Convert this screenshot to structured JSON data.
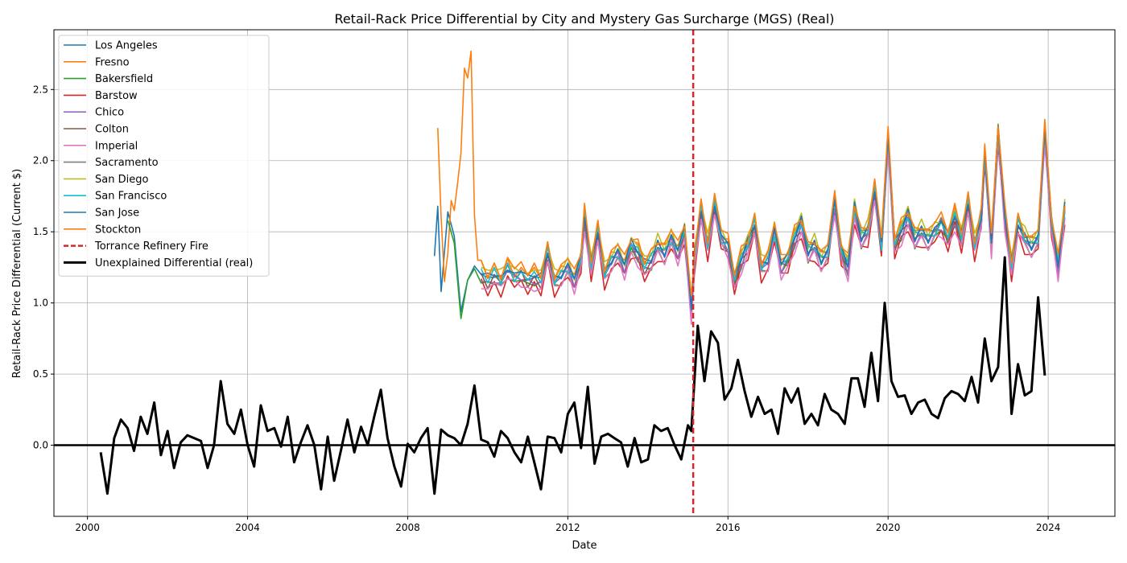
{
  "chart_data": {
    "type": "line",
    "title": "Retail-Rack Price Differential by City and Mystery Gas Surcharge (MGS) (Real)",
    "xlabel": "Date",
    "ylabel": "Retail-Rack Price Differential (Current $)",
    "xlim": [
      "1999-03-01",
      "2025-09-01"
    ],
    "ylim": [
      -0.5,
      2.92
    ],
    "x_ticks": [
      "2000",
      "2004",
      "2008",
      "2012",
      "2016",
      "2020",
      "2024"
    ],
    "y_ticks": [
      "0.0",
      "0.5",
      "1.0",
      "1.5",
      "2.0",
      "2.5"
    ],
    "grid": true,
    "legend_position": "top-left",
    "zero_line": 0,
    "event": {
      "name": "Torrance Refinery Fire",
      "date": "2015-02-18",
      "color": "#d62728"
    },
    "city_series": [
      {
        "name": "Los Angeles",
        "color": "#1f77b4",
        "start": "2008-09-01",
        "offset": 0.0
      },
      {
        "name": "Fresno",
        "color": "#ff7f0e",
        "start": "2008-10-01",
        "offset": 0.04
      },
      {
        "name": "Bakersfield",
        "color": "#2ca02c",
        "start": "2009-01-01",
        "offset": -0.04
      },
      {
        "name": "Barstow",
        "color": "#d62728",
        "start": "2009-10-01",
        "offset": -0.07
      },
      {
        "name": "Chico",
        "color": "#9467bd",
        "start": "2009-10-01",
        "offset": -0.02
      },
      {
        "name": "Colton",
        "color": "#8c564b",
        "start": "2009-10-01",
        "offset": -0.01
      },
      {
        "name": "Imperial",
        "color": "#e377c2",
        "start": "2009-10-01",
        "offset": -0.06
      },
      {
        "name": "Sacramento",
        "color": "#7f7f7f",
        "start": "2017-09-01",
        "offset": 0.03
      },
      {
        "name": "San Diego",
        "color": "#bcbd22",
        "start": "2009-10-01",
        "offset": 0.05
      },
      {
        "name": "San Francisco",
        "color": "#17becf",
        "start": "2009-10-01",
        "offset": 0.01
      },
      {
        "name": "San Jose",
        "color": "#1f77b4",
        "start": "2009-10-01",
        "offset": 0.02
      },
      {
        "name": "Stockton",
        "color": "#ff7f0e",
        "start": "2009-11-01",
        "offset": 0.06
      }
    ],
    "city_base": {
      "x": [
        "2008-09-01",
        "2008-10-01",
        "2008-11-01",
        "2009-01-01",
        "2009-03-01",
        "2009-05-01",
        "2009-07-01",
        "2009-09-01",
        "2009-11-01",
        "2010-01-01",
        "2010-03-01",
        "2010-05-01",
        "2010-07-01",
        "2010-09-01",
        "2010-11-01",
        "2011-01-01",
        "2011-03-01",
        "2011-05-01",
        "2011-07-01",
        "2011-09-01",
        "2011-11-01",
        "2012-01-01",
        "2012-03-01",
        "2012-05-01",
        "2012-06-01",
        "2012-08-01",
        "2012-10-01",
        "2012-12-01",
        "2013-02-01",
        "2013-04-01",
        "2013-06-01",
        "2013-08-01",
        "2013-10-01",
        "2013-12-01",
        "2014-02-01",
        "2014-04-01",
        "2014-06-01",
        "2014-08-01",
        "2014-10-01",
        "2014-12-01",
        "2015-02-01",
        "2015-03-01",
        "2015-05-01",
        "2015-07-01",
        "2015-09-01",
        "2015-11-01",
        "2016-01-01",
        "2016-03-01",
        "2016-05-01",
        "2016-07-01",
        "2016-09-01",
        "2016-11-01",
        "2017-01-01",
        "2017-03-01",
        "2017-05-01",
        "2017-07-01",
        "2017-09-01",
        "2017-11-01",
        "2018-01-01",
        "2018-03-01",
        "2018-05-01",
        "2018-07-01",
        "2018-09-01",
        "2018-11-01",
        "2019-01-01",
        "2019-03-01",
        "2019-05-01",
        "2019-07-01",
        "2019-09-01",
        "2019-11-01",
        "2020-01-01",
        "2020-03-01",
        "2020-05-01",
        "2020-07-01",
        "2020-09-01",
        "2020-11-01",
        "2021-01-01",
        "2021-03-01",
        "2021-05-01",
        "2021-07-01",
        "2021-09-01",
        "2021-11-01",
        "2022-01-01",
        "2022-03-01",
        "2022-05-01",
        "2022-06-01",
        "2022-08-01",
        "2022-10-01",
        "2022-12-01",
        "2023-02-01",
        "2023-04-01",
        "2023-06-01",
        "2023-08-01",
        "2023-10-01",
        "2023-12-01",
        "2024-02-01",
        "2024-04-01",
        "2024-06-01"
      ],
      "y": [
        1.33,
        1.65,
        1.1,
        1.6,
        1.5,
        0.92,
        1.2,
        1.25,
        1.2,
        1.15,
        1.2,
        1.15,
        1.25,
        1.18,
        1.2,
        1.15,
        1.18,
        1.15,
        1.35,
        1.15,
        1.2,
        1.25,
        1.15,
        1.3,
        1.6,
        1.25,
        1.5,
        1.2,
        1.3,
        1.35,
        1.25,
        1.4,
        1.35,
        1.25,
        1.3,
        1.4,
        1.35,
        1.45,
        1.35,
        1.5,
        0.95,
        1.3,
        1.65,
        1.4,
        1.7,
        1.45,
        1.4,
        1.15,
        1.3,
        1.4,
        1.55,
        1.25,
        1.3,
        1.5,
        1.25,
        1.3,
        1.45,
        1.55,
        1.35,
        1.4,
        1.3,
        1.35,
        1.7,
        1.35,
        1.25,
        1.65,
        1.45,
        1.5,
        1.8,
        1.4,
        2.15,
        1.4,
        1.5,
        1.6,
        1.45,
        1.5,
        1.45,
        1.5,
        1.55,
        1.45,
        1.6,
        1.45,
        1.7,
        1.4,
        1.6,
        2.05,
        1.4,
        2.2,
        1.6,
        1.25,
        1.55,
        1.45,
        1.4,
        1.45,
        2.2,
        1.55,
        1.25,
        1.65
      ]
    },
    "fresno_early": {
      "x": [
        "2008-10-01",
        "2008-11-01",
        "2008-12-01",
        "2009-01-01",
        "2009-02-01",
        "2009-03-01",
        "2009-04-01",
        "2009-05-01",
        "2009-06-01",
        "2009-07-01",
        "2009-08-01",
        "2009-09-01",
        "2009-10-01",
        "2009-11-01"
      ],
      "y": [
        2.23,
        1.6,
        1.15,
        1.35,
        1.72,
        1.65,
        1.85,
        2.05,
        2.65,
        2.58,
        2.77,
        1.62,
        1.3,
        1.3
      ]
    },
    "unexplained": {
      "name": "Unexplained Differential (real)",
      "color": "#000000",
      "x": [
        "2000-05-01",
        "2000-07-01",
        "2000-09-01",
        "2000-11-01",
        "2001-01-01",
        "2001-03-01",
        "2001-05-01",
        "2001-07-01",
        "2001-09-01",
        "2001-11-01",
        "2002-01-01",
        "2002-03-01",
        "2002-05-01",
        "2002-07-01",
        "2002-09-01",
        "2002-11-01",
        "2003-01-01",
        "2003-03-01",
        "2003-05-01",
        "2003-07-01",
        "2003-09-01",
        "2003-11-01",
        "2004-01-01",
        "2004-03-01",
        "2004-05-01",
        "2004-07-01",
        "2004-09-01",
        "2004-11-01",
        "2005-01-01",
        "2005-03-01",
        "2005-05-01",
        "2005-07-01",
        "2005-09-01",
        "2005-11-01",
        "2006-01-01",
        "2006-03-01",
        "2006-05-01",
        "2006-07-01",
        "2006-09-01",
        "2006-11-01",
        "2007-01-01",
        "2007-03-01",
        "2007-05-01",
        "2007-07-01",
        "2007-09-01",
        "2007-11-01",
        "2008-01-01",
        "2008-03-01",
        "2008-05-01",
        "2008-07-01",
        "2008-09-01",
        "2008-11-01",
        "2009-01-01",
        "2009-03-01",
        "2009-05-01",
        "2009-07-01",
        "2009-09-01",
        "2009-11-01",
        "2010-01-01",
        "2010-03-01",
        "2010-05-01",
        "2010-07-01",
        "2010-09-01",
        "2010-11-01",
        "2011-01-01",
        "2011-03-01",
        "2011-05-01",
        "2011-07-01",
        "2011-09-01",
        "2011-11-01",
        "2012-01-01",
        "2012-03-01",
        "2012-05-01",
        "2012-07-01",
        "2012-09-01",
        "2012-11-01",
        "2013-01-01",
        "2013-03-01",
        "2013-05-01",
        "2013-07-01",
        "2013-09-01",
        "2013-11-01",
        "2014-01-01",
        "2014-03-01",
        "2014-05-01",
        "2014-07-01",
        "2014-09-01",
        "2014-11-01",
        "2015-01-01",
        "2015-02-01",
        "2015-04-01",
        "2015-06-01",
        "2015-08-01",
        "2015-10-01",
        "2015-12-01",
        "2016-02-01",
        "2016-04-01",
        "2016-06-01",
        "2016-08-01",
        "2016-10-01",
        "2016-12-01",
        "2017-02-01",
        "2017-04-01",
        "2017-06-01",
        "2017-08-01",
        "2017-10-01",
        "2017-12-01",
        "2018-02-01",
        "2018-04-01",
        "2018-06-01",
        "2018-08-01",
        "2018-10-01",
        "2018-12-01",
        "2019-02-01",
        "2019-04-01",
        "2019-06-01",
        "2019-08-01",
        "2019-10-01",
        "2019-12-01",
        "2020-02-01",
        "2020-04-01",
        "2020-06-01",
        "2020-08-01",
        "2020-10-01",
        "2020-12-01",
        "2021-02-01",
        "2021-04-01",
        "2021-06-01",
        "2021-08-01",
        "2021-10-01",
        "2021-12-01",
        "2022-02-01",
        "2022-04-01",
        "2022-06-01",
        "2022-08-01",
        "2022-10-01",
        "2022-12-01",
        "2023-02-01",
        "2023-04-01",
        "2023-06-01",
        "2023-08-01",
        "2023-10-01",
        "2023-12-01"
      ],
      "y": [
        -0.05,
        -0.34,
        0.05,
        0.18,
        0.12,
        -0.04,
        0.2,
        0.08,
        0.3,
        -0.07,
        0.1,
        -0.16,
        0.02,
        0.07,
        0.05,
        0.03,
        -0.16,
        0.0,
        0.45,
        0.15,
        0.08,
        0.25,
        0.0,
        -0.15,
        0.28,
        0.1,
        0.12,
        -0.01,
        0.2,
        -0.12,
        0.02,
        0.14,
        0.0,
        -0.31,
        0.06,
        -0.25,
        -0.04,
        0.18,
        -0.05,
        0.13,
        0.0,
        0.2,
        0.39,
        0.05,
        -0.15,
        -0.29,
        0.01,
        -0.05,
        0.05,
        0.12,
        -0.34,
        0.11,
        0.07,
        0.05,
        0.0,
        0.15,
        0.42,
        0.04,
        0.02,
        -0.08,
        0.1,
        0.05,
        -0.05,
        -0.12,
        0.06,
        -0.12,
        -0.31,
        0.06,
        0.05,
        -0.05,
        0.22,
        0.3,
        -0.02,
        0.41,
        -0.13,
        0.06,
        0.08,
        0.05,
        0.02,
        -0.15,
        0.05,
        -0.12,
        -0.1,
        0.14,
        0.1,
        0.12,
        0.0,
        -0.1,
        0.14,
        0.1,
        0.84,
        0.45,
        0.8,
        0.72,
        0.32,
        0.4,
        0.6,
        0.38,
        0.2,
        0.34,
        0.22,
        0.25,
        0.08,
        0.4,
        0.3,
        0.4,
        0.15,
        0.22,
        0.14,
        0.36,
        0.25,
        0.22,
        0.15,
        0.47,
        0.47,
        0.27,
        0.65,
        0.31,
        1.0,
        0.45,
        0.34,
        0.35,
        0.22,
        0.3,
        0.32,
        0.22,
        0.19,
        0.33,
        0.38,
        0.36,
        0.31,
        0.48,
        0.3,
        0.75,
        0.45,
        0.55,
        1.32,
        0.22,
        0.57,
        0.35,
        0.38,
        1.04,
        0.49
      ]
    }
  }
}
